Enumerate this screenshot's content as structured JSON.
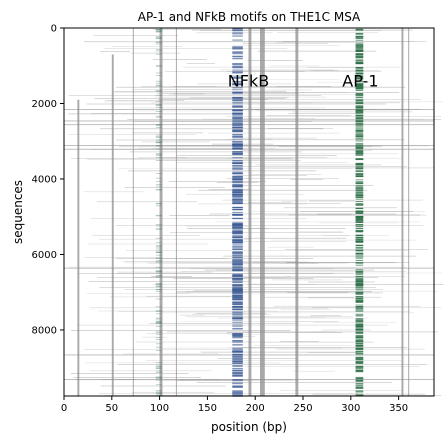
{
  "chart_data": {
    "type": "heatmap",
    "title": "AP-1 and NFkB motifs on THE1C MSA",
    "xlabel": "position (bp)",
    "ylabel": "sequences",
    "xlim": [
      0,
      387
    ],
    "ylim": [
      9750,
      0
    ],
    "x_ticks": [
      0,
      50,
      100,
      150,
      200,
      250,
      300,
      350
    ],
    "y_ticks": [
      0,
      2000,
      4000,
      6000,
      8000
    ],
    "grid": false,
    "legend": "none",
    "colors": {
      "alignment": "#8c8c8c",
      "nfkb_motif": "#3f5d97",
      "ap1_motif": "#2e7048",
      "background": "#ffffff"
    },
    "annotations": [
      {
        "text": "NFkB",
        "x": 193,
        "y": 1550
      },
      {
        "text": "AP-1",
        "x": 310,
        "y": 1550
      }
    ],
    "motif_columns": [
      {
        "name": "NFkB",
        "x_start": 176,
        "x_end": 187,
        "color": "#3f5d97",
        "y_range": [
          0,
          9750
        ],
        "density": "high from ~1900 to ~9750"
      },
      {
        "name": "AP-1",
        "x_start": 305,
        "x_end": 313,
        "color": "#2e7048",
        "y_range": [
          0,
          9750
        ],
        "density": "high throughout"
      }
    ],
    "alignment_columns": [
      {
        "x": 14,
        "width": 2,
        "y_range": [
          1900,
          9750
        ]
      },
      {
        "x": 50,
        "width": 2,
        "y_range": [
          700,
          9750
        ]
      },
      {
        "x": 72,
        "width": 1,
        "y_range": [
          0,
          9750
        ]
      },
      {
        "x": 100,
        "width": 3,
        "y_range": [
          0,
          9750
        ]
      },
      {
        "x": 117,
        "width": 1,
        "y_range": [
          0,
          9750
        ]
      },
      {
        "x": 193,
        "width": 3,
        "y_range": [
          0,
          9750
        ]
      },
      {
        "x": 205,
        "width": 5,
        "y_range": [
          0,
          9750
        ]
      },
      {
        "x": 242,
        "width": 3,
        "y_range": [
          0,
          9750
        ]
      },
      {
        "x": 353,
        "width": 2,
        "y_range": [
          0,
          9750
        ]
      },
      {
        "x": 360,
        "width": 1,
        "y_range": [
          0,
          9750
        ]
      }
    ]
  }
}
